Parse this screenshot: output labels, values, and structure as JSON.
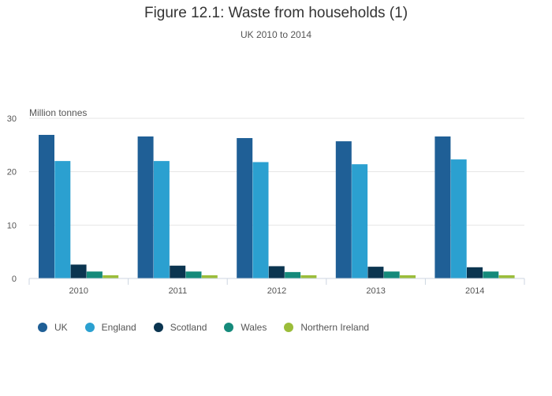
{
  "chart_data": {
    "type": "bar",
    "title": "Figure 12.1: Waste from households (1)",
    "subtitle": "UK 2010 to 2014",
    "ylabel": "Million tonnes",
    "xlabel": "",
    "categories": [
      "2010",
      "2011",
      "2012",
      "2013",
      "2014"
    ],
    "ylim": [
      0,
      30
    ],
    "yticks": [
      0,
      10,
      20,
      30
    ],
    "grid": true,
    "legend_position": "bottom-left",
    "series": [
      {
        "name": "UK",
        "color": "#1f5f96",
        "values": [
          26.9,
          26.6,
          26.3,
          25.7,
          26.6
        ]
      },
      {
        "name": "England",
        "color": "#2ba0d0",
        "values": [
          22.0,
          22.0,
          21.8,
          21.4,
          22.3
        ]
      },
      {
        "name": "Scotland",
        "color": "#0b3550",
        "values": [
          2.6,
          2.4,
          2.3,
          2.2,
          2.1
        ]
      },
      {
        "name": "Wales",
        "color": "#158a7b",
        "values": [
          1.3,
          1.3,
          1.2,
          1.3,
          1.3
        ]
      },
      {
        "name": "Northern Ireland",
        "color": "#9bbd3a",
        "values": [
          0.6,
          0.6,
          0.6,
          0.6,
          0.6
        ]
      }
    ]
  }
}
